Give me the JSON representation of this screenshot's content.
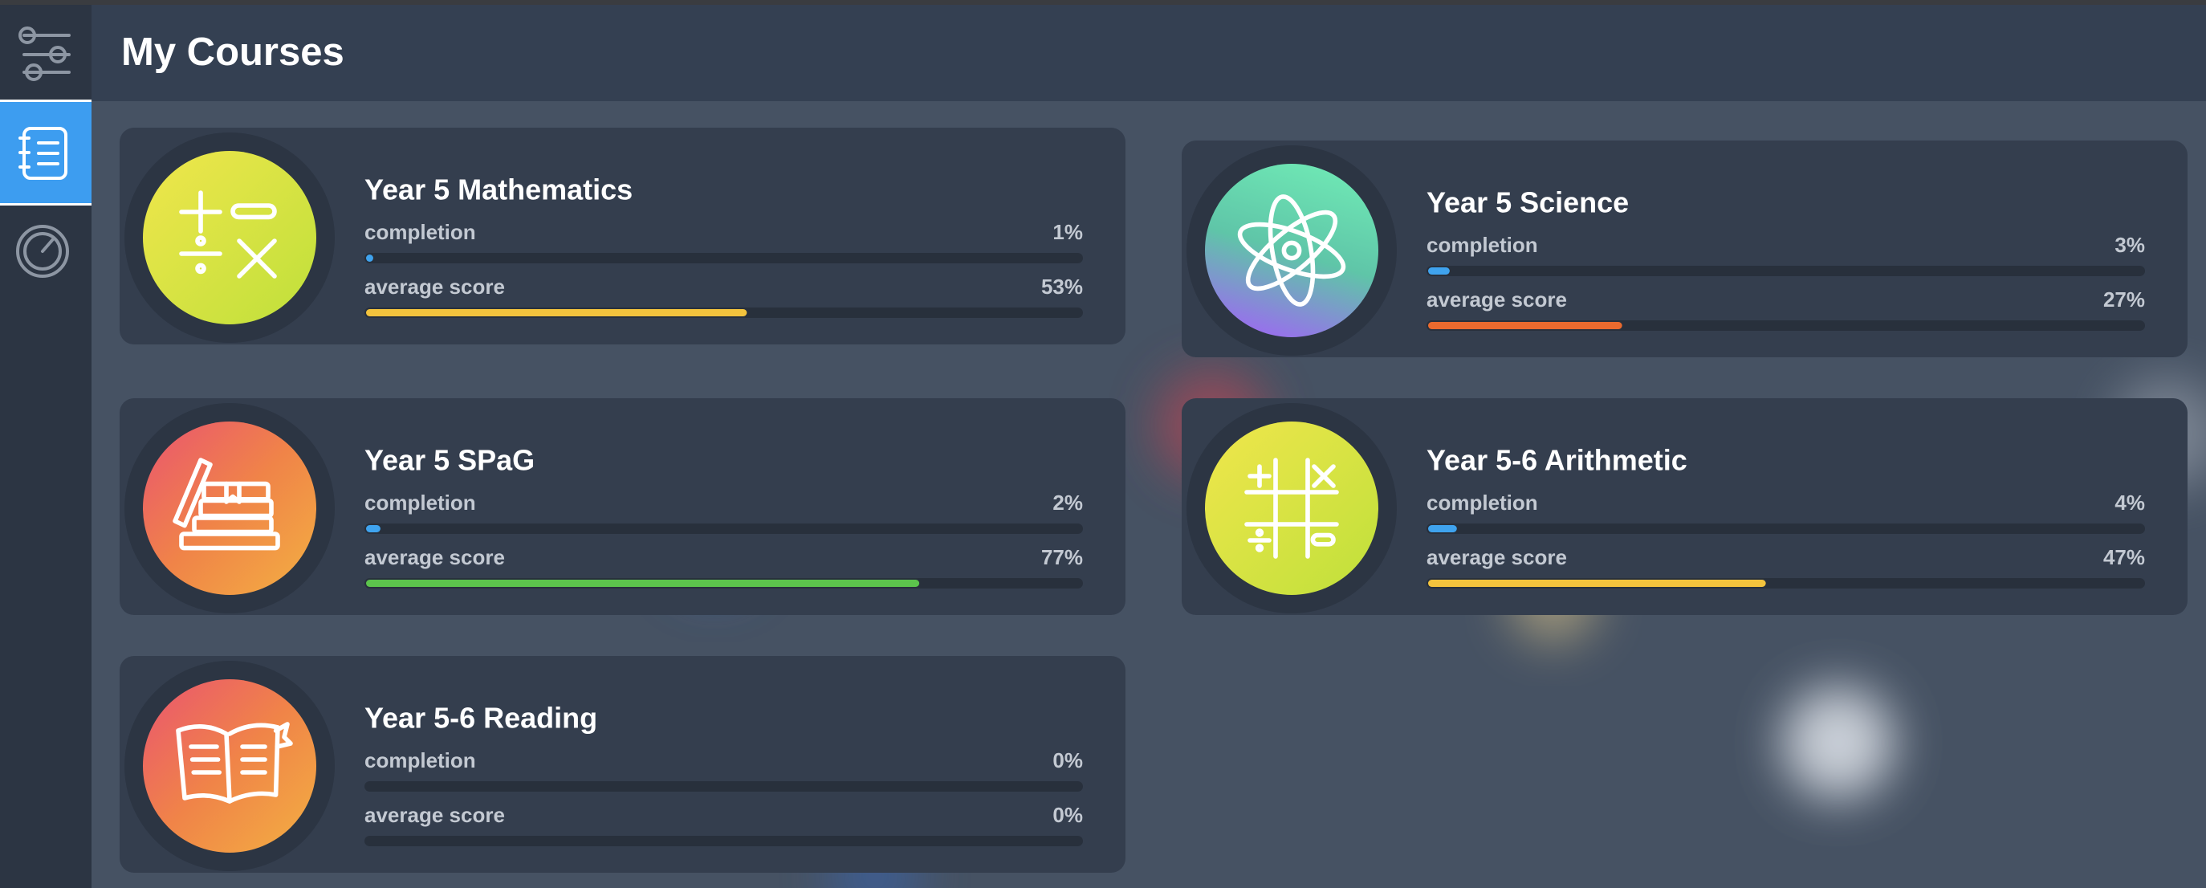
{
  "header": {
    "title": "My Courses"
  },
  "progress_range": [
    0,
    100
  ],
  "courses": [
    {
      "title": "Year 5 Mathematics",
      "stats": [
        {
          "name": "completion",
          "value": 1,
          "label": "1%",
          "color": "#3fa3ee"
        },
        {
          "name": "average score",
          "value": 53,
          "label": "53%",
          "color": "#f3c33d"
        }
      ]
    },
    {
      "title": "Year 5 Science",
      "stats": [
        {
          "name": "completion",
          "value": 3,
          "label": "3%",
          "color": "#3fa3ee"
        },
        {
          "name": "average score",
          "value": 27,
          "label": "27%",
          "color": "#ea6a2e"
        }
      ]
    },
    {
      "title": "Year 5 SPaG",
      "stats": [
        {
          "name": "completion",
          "value": 2,
          "label": "2%",
          "color": "#3fa3ee"
        },
        {
          "name": "average score",
          "value": 77,
          "label": "77%",
          "color": "#5cc44c"
        }
      ]
    },
    {
      "title": "Year 5-6 Arithmetic",
      "stats": [
        {
          "name": "completion",
          "value": 4,
          "label": "4%",
          "color": "#3fa3ee"
        },
        {
          "name": "average score",
          "value": 47,
          "label": "47%",
          "color": "#f3c33d"
        }
      ]
    },
    {
      "title": "Year 5-6 Reading",
      "stats": [
        {
          "name": "completion",
          "value": 0,
          "label": "0%",
          "color": "#3fa3ee"
        },
        {
          "name": "average score",
          "value": 0,
          "label": "0%",
          "color": "#f3c33d"
        }
      ]
    }
  ]
}
